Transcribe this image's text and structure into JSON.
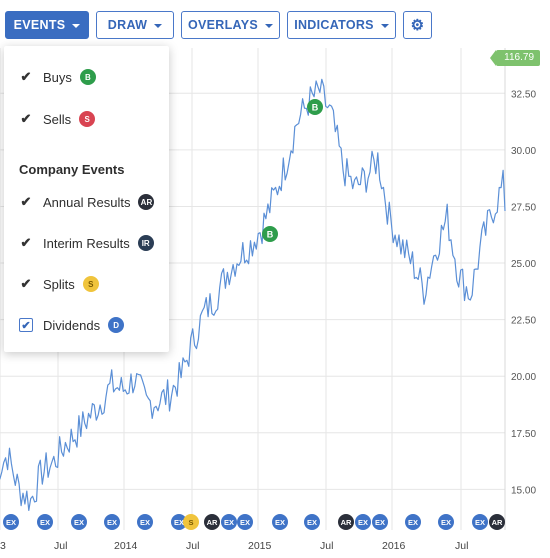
{
  "toolbar": {
    "events": "EVENTS",
    "draw": "DRAW",
    "overlays": "OVERLAYS",
    "indicators": "INDICATORS"
  },
  "price_tag": "116.79",
  "y_axis_labels": [
    "32.50",
    "30.00",
    "27.50",
    "25.00",
    "22.50",
    "20.00",
    "17.50",
    "15.00"
  ],
  "x_axis_labels": [
    "3",
    "Jul",
    "2014",
    "Jul",
    "2015",
    "Jul",
    "2016",
    "Jul"
  ],
  "events_menu": {
    "buys": {
      "label": "Buys",
      "badge": "B",
      "checked": true
    },
    "sells": {
      "label": "Sells",
      "badge": "S",
      "checked": true
    },
    "company_heading": "Company Events",
    "annual": {
      "label": "Annual Results",
      "badge": "AR",
      "checked": true
    },
    "interim": {
      "label": "Interim Results",
      "badge": "IR",
      "checked": true
    },
    "splits": {
      "label": "Splits",
      "badge": "S",
      "checked": true
    },
    "dividends": {
      "label": "Dividends",
      "badge": "D",
      "checked": true
    }
  },
  "chart_markers": {
    "buy1": "B",
    "buy2": "B",
    "event_labels": [
      "EX",
      "EX",
      "EX",
      "EX",
      "EX",
      "EX",
      "S",
      "AR",
      "EX",
      "EX",
      "EX",
      "EX",
      "AR",
      "EX",
      "EX",
      "EX",
      "EX",
      "EX",
      "AR"
    ]
  },
  "colors": {
    "accent": "#3a6dc1",
    "line": "#5b8fd6",
    "buy": "#2e9d4b",
    "sell": "#d94452",
    "split": "#f0c43c",
    "annual": "#2b2f3a",
    "dividend": "#3f73c7",
    "price_tag": "#7ec26d"
  },
  "chart_data": {
    "type": "line",
    "x": [
      "Jan 2013",
      "Feb 2013",
      "Mar 2013",
      "Apr 2013",
      "May 2013",
      "Jun 2013",
      "Jul 2013",
      "Aug 2013",
      "Sep 2013",
      "Oct 2013",
      "Nov 2013",
      "Dec 2013",
      "Jan 2014",
      "Feb 2014",
      "Mar 2014",
      "Apr 2014",
      "May 2014",
      "Jun 2014",
      "Jul 2014",
      "Aug 2014",
      "Sep 2014",
      "Oct 2014",
      "Nov 2014",
      "Dec 2014",
      "Jan 2015",
      "Feb 2015",
      "Mar 2015",
      "Apr 2015",
      "May 2015",
      "Jun 2015",
      "Jul 2015",
      "Aug 2015",
      "Sep 2015",
      "Oct 2015",
      "Nov 2015",
      "Dec 2015",
      "Jan 2016",
      "Feb 2016",
      "Mar 2016",
      "Apr 2016",
      "May 2016",
      "Jun 2016",
      "Jul 2016",
      "Aug 2016",
      "Sep 2016"
    ],
    "series": [
      {
        "values": [
          15.8,
          16.5,
          15.0,
          14.5,
          15.8,
          16.2,
          17.0,
          17.5,
          18.2,
          18.8,
          19.6,
          19.4,
          19.9,
          18.8,
          18.9,
          19.2,
          20.0,
          21.5,
          22.8,
          23.5,
          24.6,
          25.3,
          25.8,
          26.6,
          27.9,
          29.3,
          31.2,
          32.1,
          32.6,
          31.5,
          29.2,
          28.3,
          28.8,
          29.6,
          27.0,
          25.8,
          25.0,
          23.8,
          25.6,
          27.0,
          24.5,
          23.6,
          25.9,
          27.4,
          28.6
        ]
      }
    ],
    "ylim": [
      14.0,
      34.5
    ],
    "y_ticks": [
      15.0,
      17.5,
      20.0,
      22.5,
      25.0,
      27.5,
      30.0,
      32.5
    ],
    "grid": true
  }
}
